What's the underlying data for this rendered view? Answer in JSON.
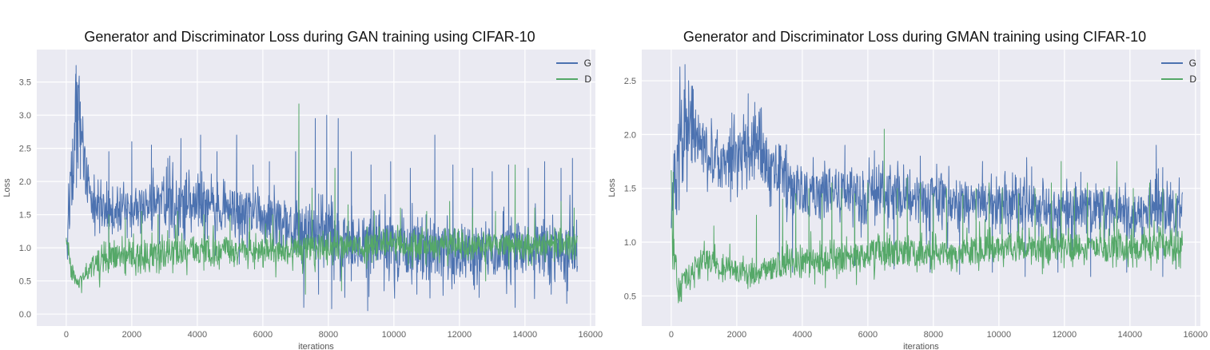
{
  "style": {
    "page_bg": "#ffffff",
    "plot_bg": "#eaeaf2",
    "grid_color": "#ffffff",
    "tick_color": "#606060",
    "title_color": "#141414",
    "axis_label_color": "#555555",
    "g_color": "#4c72b0",
    "d_color": "#55a868"
  },
  "chart_data": [
    {
      "type": "line",
      "title": "Generator and Discriminator Loss during GAN training using CIFAR-10",
      "xlabel": "iterations",
      "ylabel": "Loss",
      "xlim": [
        -900,
        16150
      ],
      "ylim": [
        -0.18,
        3.99
      ],
      "xticks": [
        0,
        2000,
        4000,
        6000,
        8000,
        10000,
        12000,
        14000,
        16000
      ],
      "yticks": [
        0.0,
        0.5,
        1.0,
        1.5,
        2.0,
        2.5,
        3.0,
        3.5
      ],
      "x_max_data": 15600,
      "grid": true,
      "legend_loc": "upper right",
      "series": [
        {
          "name": "G",
          "color": "#4c72b0",
          "band": [
            [
              0,
              1.05,
              0.3
            ],
            [
              150,
              1.9,
              0.5
            ],
            [
              300,
              2.9,
              0.8
            ],
            [
              420,
              2.95,
              0.7
            ],
            [
              560,
              2.2,
              0.5
            ],
            [
              800,
              1.65,
              0.35
            ],
            [
              1500,
              1.55,
              0.38
            ],
            [
              3000,
              1.6,
              0.42
            ],
            [
              4200,
              1.65,
              0.42
            ],
            [
              5200,
              1.55,
              0.42
            ],
            [
              6500,
              1.35,
              0.45
            ],
            [
              8000,
              1.15,
              0.5
            ],
            [
              9500,
              1.05,
              0.45
            ],
            [
              11000,
              0.95,
              0.45
            ],
            [
              13000,
              0.95,
              0.45
            ],
            [
              15600,
              1.0,
              0.45
            ]
          ],
          "spikes": [
            [
              300,
              3.75
            ],
            [
              360,
              3.45
            ],
            [
              430,
              3.2
            ],
            [
              1300,
              2.45
            ],
            [
              2000,
              2.6
            ],
            [
              2600,
              2.55
            ],
            [
              3100,
              2.35
            ],
            [
              3500,
              2.65
            ],
            [
              4100,
              2.7
            ],
            [
              4600,
              2.45
            ],
            [
              5200,
              2.7
            ],
            [
              5700,
              2.25
            ],
            [
              6200,
              2.3
            ],
            [
              7000,
              2.45
            ],
            [
              7600,
              2.95
            ],
            [
              7950,
              3.0
            ],
            [
              8300,
              2.95
            ],
            [
              8700,
              2.45
            ],
            [
              9300,
              2.25
            ],
            [
              9900,
              2.3
            ],
            [
              10500,
              2.2
            ],
            [
              11250,
              2.7
            ],
            [
              11800,
              2.25
            ],
            [
              12400,
              2.2
            ],
            [
              13000,
              2.15
            ],
            [
              13500,
              2.25
            ],
            [
              14100,
              2.2
            ],
            [
              14600,
              2.3
            ],
            [
              15100,
              2.2
            ],
            [
              15450,
              2.35
            ],
            [
              7250,
              0.1
            ],
            [
              7700,
              0.3
            ],
            [
              8100,
              0.08
            ],
            [
              8500,
              0.25
            ],
            [
              9200,
              0.05
            ],
            [
              9700,
              0.35
            ],
            [
              10700,
              0.3
            ],
            [
              11500,
              0.28
            ],
            [
              12600,
              0.25
            ],
            [
              13700,
              0.1
            ],
            [
              14800,
              0.3
            ],
            [
              15300,
              0.35
            ]
          ]
        },
        {
          "name": "D",
          "color": "#55a868",
          "band": [
            [
              0,
              1.15,
              0.15
            ],
            [
              180,
              0.6,
              0.13
            ],
            [
              350,
              0.45,
              0.1
            ],
            [
              600,
              0.62,
              0.15
            ],
            [
              1000,
              0.8,
              0.22
            ],
            [
              2000,
              0.9,
              0.25
            ],
            [
              3500,
              0.95,
              0.25
            ],
            [
              5000,
              0.95,
              0.23
            ],
            [
              7000,
              0.98,
              0.23
            ],
            [
              9000,
              1.03,
              0.21
            ],
            [
              11000,
              1.05,
              0.2
            ],
            [
              13000,
              1.05,
              0.2
            ],
            [
              15600,
              1.05,
              0.2
            ]
          ],
          "spikes": [
            [
              1300,
              1.5
            ],
            [
              1800,
              1.45
            ],
            [
              2300,
              1.55
            ],
            [
              2800,
              1.5
            ],
            [
              3400,
              1.55
            ],
            [
              4200,
              1.5
            ],
            [
              5000,
              1.5
            ],
            [
              5600,
              1.45
            ],
            [
              6300,
              1.5
            ],
            [
              7100,
              3.17
            ],
            [
              7500,
              1.9
            ],
            [
              8200,
              2.2
            ],
            [
              8600,
              1.65
            ],
            [
              9400,
              1.55
            ],
            [
              10200,
              1.6
            ],
            [
              11000,
              1.55
            ],
            [
              11700,
              1.7
            ],
            [
              12400,
              1.6
            ],
            [
              13100,
              1.55
            ],
            [
              13700,
              2.25
            ],
            [
              14300,
              1.6
            ],
            [
              15100,
              1.7
            ],
            [
              15500,
              1.6
            ],
            [
              7300,
              0.3
            ],
            [
              8400,
              0.35
            ],
            [
              12800,
              0.5
            ]
          ]
        }
      ]
    },
    {
      "type": "line",
      "title": "Generator and Discriminator Loss during GMAN training using CIFAR-10",
      "xlabel": "iterations",
      "ylabel": "Loss",
      "xlim": [
        -900,
        16150
      ],
      "ylim": [
        0.22,
        2.79
      ],
      "xticks": [
        0,
        2000,
        4000,
        6000,
        8000,
        10000,
        12000,
        14000,
        16000
      ],
      "yticks": [
        0.5,
        1.0,
        1.5,
        2.0,
        2.5
      ],
      "x_max_data": 15600,
      "grid": true,
      "legend_loc": "upper right",
      "series": [
        {
          "name": "G",
          "color": "#4c72b0",
          "band": [
            [
              0,
              1.2,
              0.5
            ],
            [
              250,
              1.95,
              0.4
            ],
            [
              450,
              2.15,
              0.4
            ],
            [
              700,
              2.0,
              0.32
            ],
            [
              1100,
              1.85,
              0.3
            ],
            [
              1500,
              1.68,
              0.3
            ],
            [
              1900,
              1.78,
              0.3
            ],
            [
              2300,
              1.9,
              0.32
            ],
            [
              2600,
              1.95,
              0.33
            ],
            [
              3000,
              1.7,
              0.32
            ],
            [
              3500,
              1.52,
              0.3
            ],
            [
              4200,
              1.45,
              0.28
            ],
            [
              5000,
              1.5,
              0.26
            ],
            [
              6000,
              1.45,
              0.26
            ],
            [
              7500,
              1.4,
              0.26
            ],
            [
              9000,
              1.37,
              0.25
            ],
            [
              10500,
              1.35,
              0.24
            ],
            [
              12000,
              1.3,
              0.23
            ],
            [
              13500,
              1.3,
              0.23
            ],
            [
              15600,
              1.3,
              0.23
            ]
          ],
          "spikes": [
            [
              420,
              2.65
            ],
            [
              530,
              2.5
            ],
            [
              620,
              2.45
            ],
            [
              1850,
              2.2
            ],
            [
              2350,
              2.38
            ],
            [
              2550,
              2.3
            ],
            [
              2750,
              2.25
            ],
            [
              5300,
              1.9
            ],
            [
              6200,
              1.85
            ],
            [
              7600,
              1.8
            ],
            [
              9500,
              1.75
            ],
            [
              11000,
              1.7
            ],
            [
              12500,
              1.65
            ],
            [
              13600,
              1.7
            ],
            [
              14800,
              1.9
            ],
            [
              3300,
              0.8
            ],
            [
              3700,
              0.72
            ],
            [
              4600,
              0.82
            ],
            [
              5600,
              0.78
            ],
            [
              6800,
              0.75
            ],
            [
              7900,
              0.72
            ],
            [
              8800,
              0.7
            ],
            [
              9800,
              0.72
            ],
            [
              10800,
              0.68
            ],
            [
              11800,
              0.72
            ],
            [
              12800,
              0.68
            ],
            [
              13900,
              0.72
            ],
            [
              15000,
              0.68
            ],
            [
              15400,
              0.75
            ]
          ]
        },
        {
          "name": "D",
          "color": "#55a868",
          "band": [
            [
              0,
              1.1,
              0.5
            ],
            [
              200,
              0.58,
              0.12
            ],
            [
              500,
              0.68,
              0.12
            ],
            [
              900,
              0.83,
              0.13
            ],
            [
              1400,
              0.8,
              0.12
            ],
            [
              2100,
              0.72,
              0.12
            ],
            [
              2700,
              0.72,
              0.12
            ],
            [
              3300,
              0.78,
              0.13
            ],
            [
              4000,
              0.83,
              0.15
            ],
            [
              5000,
              0.85,
              0.15
            ],
            [
              6500,
              0.9,
              0.15
            ],
            [
              8000,
              0.9,
              0.15
            ],
            [
              9500,
              0.93,
              0.15
            ],
            [
              11000,
              0.95,
              0.15
            ],
            [
              13000,
              0.95,
              0.15
            ],
            [
              15600,
              0.95,
              0.16
            ]
          ],
          "spikes": [
            [
              60,
              1.65
            ],
            [
              300,
              0.45
            ],
            [
              1300,
              1.15
            ],
            [
              2600,
              1.25
            ],
            [
              3400,
              1.4
            ],
            [
              3800,
              1.45
            ],
            [
              4200,
              1.5
            ],
            [
              4600,
              1.45
            ],
            [
              4900,
              1.55
            ],
            [
              5200,
              1.5
            ],
            [
              5600,
              1.45
            ],
            [
              6000,
              1.55
            ],
            [
              6500,
              2.05
            ],
            [
              6900,
              1.5
            ],
            [
              7200,
              1.6
            ],
            [
              7600,
              1.55
            ],
            [
              8000,
              1.45
            ],
            [
              8400,
              1.5
            ],
            [
              8900,
              1.45
            ],
            [
              9300,
              1.5
            ],
            [
              9700,
              1.55
            ],
            [
              10100,
              1.5
            ],
            [
              10600,
              1.45
            ],
            [
              11100,
              1.5
            ],
            [
              11600,
              1.55
            ],
            [
              11900,
              1.75
            ],
            [
              12300,
              1.5
            ],
            [
              12700,
              1.55
            ],
            [
              13200,
              1.5
            ],
            [
              13600,
              1.75
            ],
            [
              14100,
              1.5
            ],
            [
              14600,
              1.55
            ],
            [
              15000,
              1.5
            ],
            [
              15400,
              1.45
            ]
          ]
        }
      ]
    }
  ]
}
